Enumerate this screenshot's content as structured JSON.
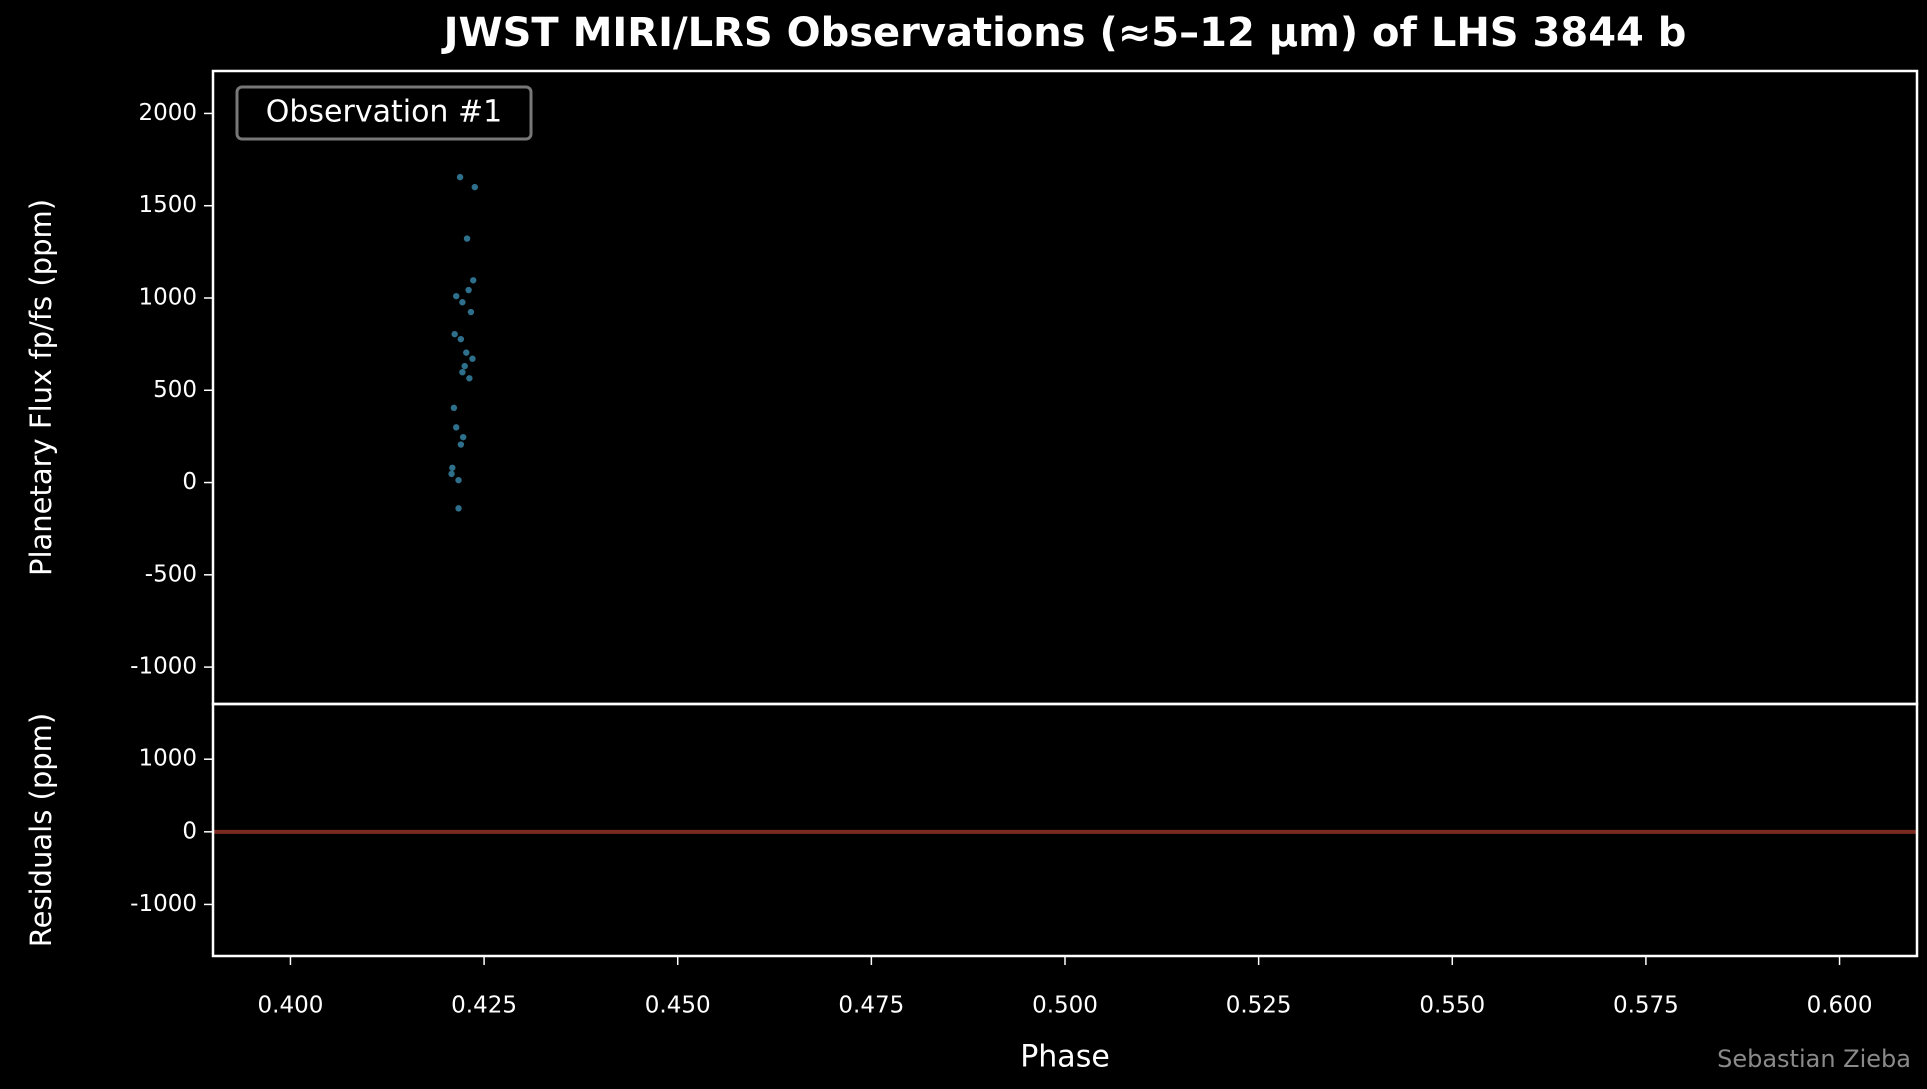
{
  "chart_data": [
    {
      "type": "scatter",
      "title": "JWST MIRI/LRS Observations (≈5–12 µm) of LHS 3844 b",
      "annotation": "Observation #1",
      "ylabel": "Planetary Flux fp/fs (ppm)",
      "x": [
        0.4219,
        0.4238,
        0.4228,
        0.4236,
        0.4214,
        0.423,
        0.4222,
        0.4233,
        0.4212,
        0.422,
        0.4227,
        0.4235,
        0.4225,
        0.4222,
        0.4231,
        0.4211,
        0.4214,
        0.4223,
        0.422,
        0.4209,
        0.4208,
        0.4217,
        0.4217
      ],
      "series": [
        {
          "color": "#2e6f8c",
          "values": [
            1655,
            1601,
            1322,
            1096,
            1010,
            1043,
            977,
            924,
            804,
            777,
            704,
            671,
            631,
            598,
            565,
            405,
            299,
            246,
            206,
            80,
            47,
            13,
            -140
          ]
        }
      ],
      "xlim": [
        0.39,
        0.61
      ],
      "ylim": [
        -1200,
        2230
      ],
      "yticks": [
        -1000,
        -500,
        0,
        500,
        1000,
        1500,
        2000
      ]
    },
    {
      "type": "hline",
      "ylabel": "Residuals (ppm)",
      "xlabel": "Phase",
      "xlim": [
        0.39,
        0.61
      ],
      "ylim": [
        -1710,
        1760
      ],
      "yticks": [
        -1000,
        0,
        1000
      ],
      "xticks": [
        {
          "value": 0.4,
          "label": "0.400"
        },
        {
          "value": 0.425,
          "label": "0.425"
        },
        {
          "value": 0.45,
          "label": "0.450"
        },
        {
          "value": 0.475,
          "label": "0.475"
        },
        {
          "value": 0.5,
          "label": "0.500"
        },
        {
          "value": 0.525,
          "label": "0.525"
        },
        {
          "value": 0.55,
          "label": "0.550"
        },
        {
          "value": 0.575,
          "label": "0.575"
        },
        {
          "value": 0.6,
          "label": "0.600"
        }
      ],
      "hline": 0,
      "color": "#7a2a20"
    }
  ],
  "credit": "Sebastian Zieba"
}
